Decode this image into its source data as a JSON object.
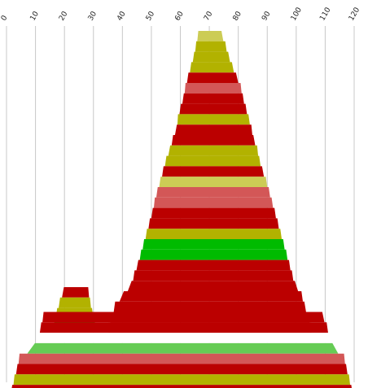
{
  "chart_data": {
    "type": "area",
    "title": "",
    "xlabel": "",
    "ylabel": "",
    "x_ticks": [
      "0",
      "10",
      "20",
      "30",
      "40",
      "50",
      "60",
      "70",
      "80",
      "90",
      "100",
      "110",
      "120"
    ],
    "xlim": [
      0,
      120
    ],
    "grid": true,
    "tick_label_position": "top, rotated",
    "colors": {
      "red": "#bb0000",
      "olive": "#b2b200",
      "light_yellow": "#cccc55",
      "pink": "#d35757",
      "green": "#00bb00",
      "light_green": "#66cc55",
      "white": "#ffffff"
    },
    "series": [
      {
        "shape": "main-peak",
        "bands": [
          {
            "left": 66.2,
            "right": 74.2,
            "color": "light_yellow"
          },
          {
            "left": 65.5,
            "right": 75.5,
            "color": "olive"
          },
          {
            "left": 64.8,
            "right": 76.5,
            "color": "olive"
          },
          {
            "left": 63.8,
            "right": 77.8,
            "color": "olive"
          },
          {
            "left": 62.8,
            "right": 79.2,
            "color": "red"
          },
          {
            "left": 61.8,
            "right": 80.8,
            "color": "pink"
          },
          {
            "left": 61.2,
            "right": 81.5,
            "color": "red"
          },
          {
            "left": 60.2,
            "right": 82.5,
            "color": "red"
          },
          {
            "left": 59.2,
            "right": 83.5,
            "color": "olive"
          },
          {
            "left": 58.8,
            "right": 84.5,
            "color": "red"
          },
          {
            "left": 57.5,
            "right": 85.2,
            "color": "red"
          },
          {
            "left": 56.5,
            "right": 86.5,
            "color": "olive"
          },
          {
            "left": 55.2,
            "right": 87.2,
            "color": "olive"
          },
          {
            "left": 54.2,
            "right": 88.2,
            "color": "red"
          },
          {
            "left": 53.2,
            "right": 89.5,
            "color": "light_yellow"
          },
          {
            "left": 52.2,
            "right": 90.5,
            "color": "pink"
          },
          {
            "left": 51.2,
            "right": 91.5,
            "color": "pink"
          },
          {
            "left": 50.5,
            "right": 92.5,
            "color": "red"
          },
          {
            "left": 49.5,
            "right": 93.5,
            "color": "red"
          },
          {
            "left": 48.5,
            "right": 94.5,
            "color": "olive"
          },
          {
            "left": 47.5,
            "right": 95.5,
            "color": "green"
          },
          {
            "left": 46.5,
            "right": 96.5,
            "color": "green"
          },
          {
            "left": 45.5,
            "right": 97.5,
            "color": "red"
          },
          {
            "left": 44.2,
            "right": 98.5,
            "color": "red"
          },
          {
            "left": 43.2,
            "right": 99.5,
            "color": "red"
          },
          {
            "left": 40.5,
            "right": 101.8,
            "color": "red"
          },
          {
            "left": 37.5,
            "right": 102.8,
            "color": "red"
          },
          {
            "left": 36.5,
            "right": 104.0,
            "color": "red"
          },
          {
            "left": 35.2,
            "right": 105.2,
            "color": "red"
          }
        ]
      },
      {
        "shape": "small-peak",
        "bands": [
          {
            "left": 19.8,
            "right": 28.2,
            "color": "red"
          },
          {
            "left": 18.5,
            "right": 28.8,
            "color": "olive"
          },
          {
            "left": 17.5,
            "right": 29.5,
            "color": "olive"
          },
          {
            "left": 16.5,
            "right": 30.5,
            "color": "green"
          }
        ]
      },
      {
        "shape": "base",
        "bands": [
          {
            "left": 12.8,
            "right": 109.0,
            "color": "red"
          },
          {
            "left": 12.0,
            "right": 110.5,
            "color": "red"
          },
          {
            "left": 11.0,
            "right": 111.5,
            "color": "white"
          },
          {
            "left": 9.8,
            "right": 112.5,
            "color": "light_green"
          },
          {
            "left": 4.5,
            "right": 116.5,
            "color": "pink"
          },
          {
            "left": 3.8,
            "right": 117.2,
            "color": "red"
          },
          {
            "left": 2.8,
            "right": 118.2,
            "color": "olive"
          },
          {
            "left": 2.0,
            "right": 119.0,
            "color": "red"
          },
          {
            "left": 0.8,
            "right": 120.0,
            "color": "red"
          }
        ]
      }
    ]
  }
}
